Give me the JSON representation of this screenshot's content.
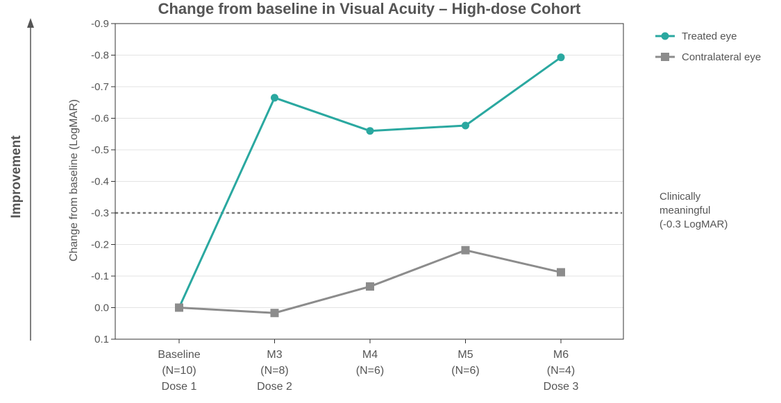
{
  "chart_data": {
    "type": "line",
    "title": "Change from baseline in Visual Acuity – High-dose Cohort",
    "ylabel": "Change from baseline (LogMAR)",
    "side_label": "Improvement",
    "ylim": [
      0.1,
      -0.9
    ],
    "yticks": [
      "-0.9",
      "-0.8",
      "-0.7",
      "-0.6",
      "-0.5",
      "-0.4",
      "-0.3",
      "-0.2",
      "-0.1",
      "0.0",
      "0.1"
    ],
    "ytick_values": [
      -0.9,
      -0.8,
      -0.7,
      -0.6,
      -0.5,
      -0.4,
      -0.3,
      -0.2,
      -0.1,
      0.0,
      0.1
    ],
    "grid": true,
    "legend_position": "top-right",
    "categories": [
      {
        "line1": "Baseline",
        "line2": "(N=10)",
        "line3": "Dose 1"
      },
      {
        "line1": "M3",
        "line2": "(N=8)",
        "line3": "Dose 2"
      },
      {
        "line1": "M4",
        "line2": "(N=6)",
        "line3": ""
      },
      {
        "line1": "M5",
        "line2": "(N=6)",
        "line3": ""
      },
      {
        "line1": "M6",
        "line2": "(N=4)",
        "line3": "Dose 3"
      }
    ],
    "series": [
      {
        "name": "Treated eye",
        "color": "#2AA8A0",
        "marker": "circle",
        "values": [
          0.0,
          -0.665,
          -0.56,
          -0.577,
          -0.793
        ]
      },
      {
        "name": "Contralateral eye",
        "color": "#8C8C8C",
        "marker": "square",
        "values": [
          0.0,
          0.017,
          -0.067,
          -0.182,
          -0.112
        ]
      }
    ],
    "reference_line": {
      "value": -0.3,
      "color": "#777777",
      "label_lines": [
        "Clinically",
        "meaningful",
        "(-0.3 LogMAR)"
      ]
    },
    "axis_color": "#333333",
    "grid_color": "#E3E3E3"
  }
}
